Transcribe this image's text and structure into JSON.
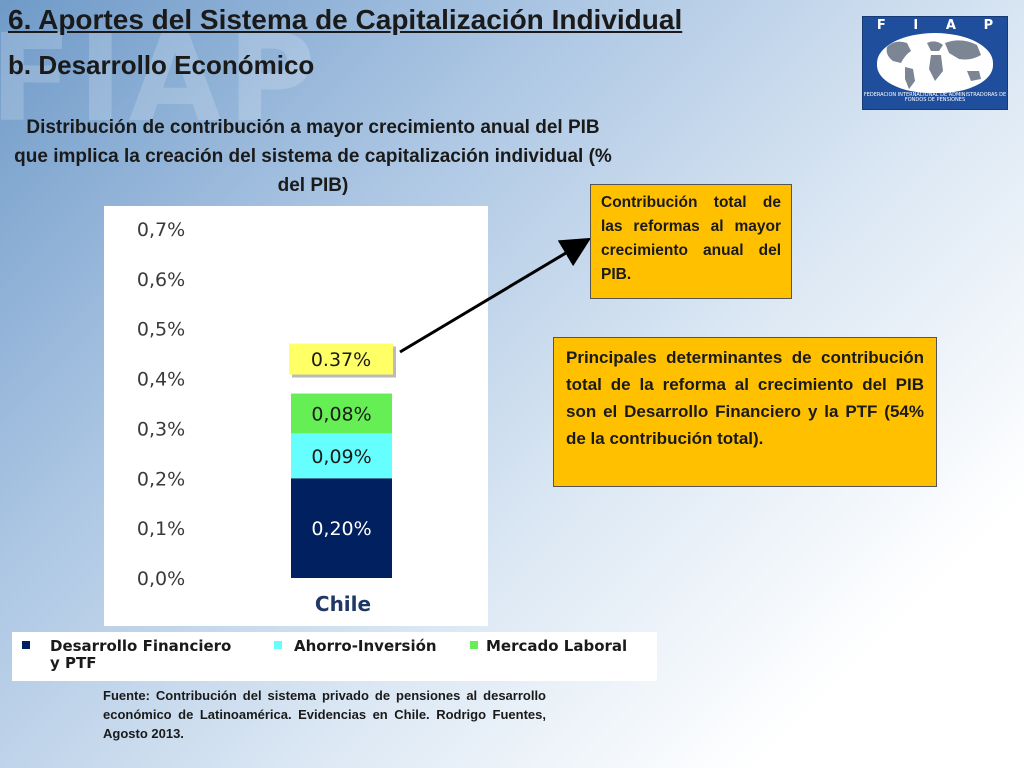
{
  "slide": {
    "title": "6. Aportes del Sistema de Capitalización Individual",
    "subtitle": "b. Desarrollo Económico"
  },
  "logo": {
    "letters": [
      "F",
      "I",
      "A",
      "P"
    ],
    "caption": "FEDERACION INTERNACIONAL DE ADMINISTRADORAS DE FONDOS DE PENSIONES"
  },
  "chart_data": {
    "type": "bar",
    "stacked": true,
    "title": "Distribución de contribución a mayor crecimiento anual del PIB que implica la creación del sistema de capitalización individual (% del PIB)",
    "categories": [
      "Chile"
    ],
    "ylim": [
      0,
      0.7
    ],
    "yticks": [
      0,
      0.1,
      0.2,
      0.3,
      0.4,
      0.5,
      0.6,
      0.7
    ],
    "ytick_labels": [
      "0,0%",
      "0,1%",
      "0,2%",
      "0,3%",
      "0,4%",
      "0,5%",
      "0,6%",
      "0,7%"
    ],
    "grid": false,
    "legend_position": "bottom",
    "series": [
      {
        "name": "Desarrollo Financiero y PTF",
        "values": [
          0.2
        ],
        "label": "0,20%",
        "color": "#002060"
      },
      {
        "name": "Ahorro-Inversión",
        "values": [
          0.09
        ],
        "label": "0,09%",
        "color": "#66ffff"
      },
      {
        "name": "Mercado Laboral",
        "values": [
          0.08
        ],
        "label": "0,08%",
        "color": "#66ee55"
      }
    ],
    "total": {
      "value": 0.37,
      "label": "0.37%",
      "color": "#ffff66"
    }
  },
  "callouts": {
    "total_text": "Contribución total de las reformas al mayor crecimiento anual del PIB.",
    "determinants_text": "Principales determinantes de contribución total de la reforma al crecimiento del PIB son el Desarrollo Financiero y la PTF (54% de la contribución total)."
  },
  "source": "Fuente: Contribución del sistema privado de pensiones al desarrollo económico de Latinoamérica. Evidencias en Chile. Rodrigo Fuentes, Agosto 2013."
}
